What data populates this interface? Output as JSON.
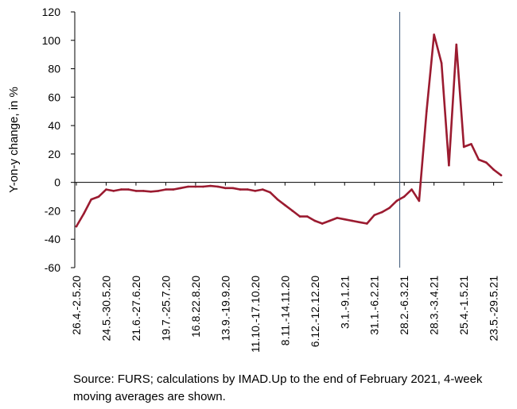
{
  "chart_data": {
    "type": "line",
    "ylabel": "Y-on-y change, in %",
    "ylim": [
      -60,
      120
    ],
    "yticks": [
      -60,
      -40,
      -20,
      0,
      20,
      40,
      60,
      80,
      100,
      120
    ],
    "x_tick_labels": [
      {
        "index": 0,
        "label": "26.4.-2.5.20"
      },
      {
        "index": 4,
        "label": "24.5.-30.5.20"
      },
      {
        "index": 8,
        "label": "21.6.-27.6.20"
      },
      {
        "index": 12,
        "label": "19.7.-25.7.20"
      },
      {
        "index": 16,
        "label": "16.8.22.8.20"
      },
      {
        "index": 20,
        "label": "13.9.-19.9.20"
      },
      {
        "index": 24,
        "label": "11.10.-17.10.20"
      },
      {
        "index": 28,
        "label": "8.11.-14.11.20"
      },
      {
        "index": 32,
        "label": "6.12.-12.12.20"
      },
      {
        "index": 36,
        "label": "3.1.-9.1.21"
      },
      {
        "index": 40,
        "label": "31.1.-6.2.21"
      },
      {
        "index": 44,
        "label": "28.2.-6.3.21"
      },
      {
        "index": 48,
        "label": "28.3.-3.4.21"
      },
      {
        "index": 52,
        "label": "25.4.-1.5.21"
      },
      {
        "index": 56,
        "label": "23.5.-29.5.21"
      }
    ],
    "divider_index": 43.4,
    "series": [
      {
        "color": "#9b1b30",
        "values": [
          -31,
          -22,
          -12,
          -10,
          -5,
          -6,
          -5,
          -5,
          -6,
          -6,
          -6.5,
          -6,
          -5,
          -5,
          -4,
          -3,
          -3,
          -3,
          -2.5,
          -3,
          -4,
          -4,
          -5,
          -5,
          -6,
          -5,
          -7,
          -12,
          -16,
          -20,
          -24,
          -24,
          -27,
          -29,
          -27,
          -25,
          -26,
          -27,
          -28,
          -29,
          -23,
          -21,
          -18,
          -13,
          -10,
          -5,
          -13,
          50,
          104,
          84,
          12,
          97,
          25,
          27,
          16,
          14,
          9,
          5
        ]
      }
    ],
    "caption": "Source: FURS; calculations by IMAD.Up to the end of February 2021, 4-week moving averages are shown."
  }
}
